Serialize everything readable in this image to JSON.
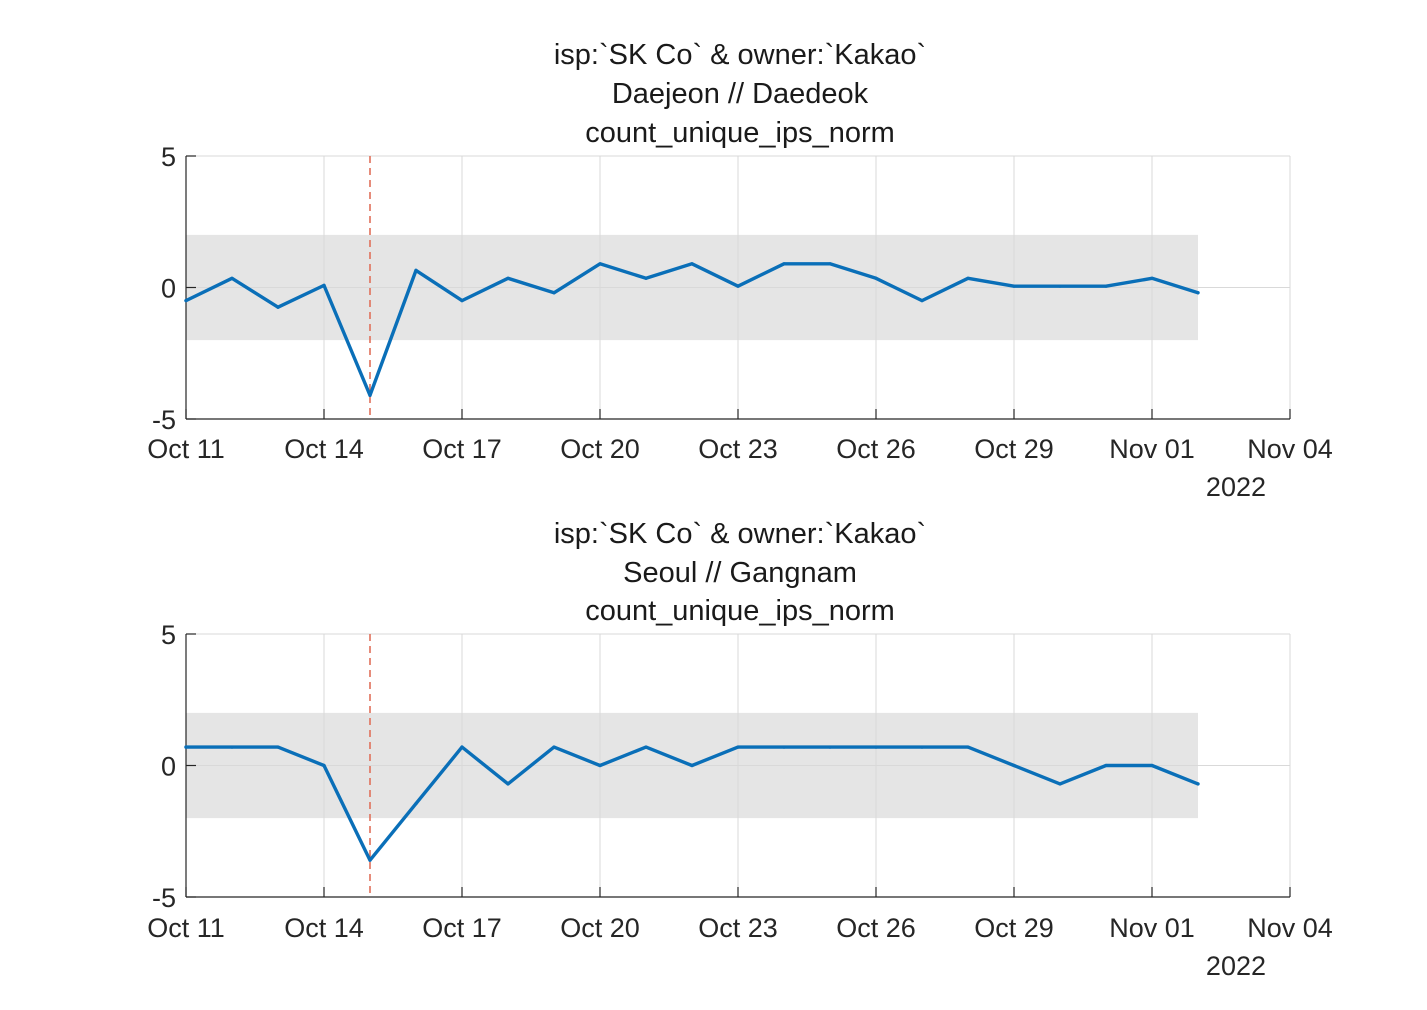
{
  "chart_data": [
    {
      "type": "line",
      "title": [
        "isp:`SK Co` & owner:`Kakao`",
        "Daejeon // Daedeok",
        "count_unique_ips_norm"
      ],
      "x_tick_labels": [
        "Oct 11",
        "Oct 14",
        "Oct 17",
        "Oct 20",
        "Oct 23",
        "Oct 26",
        "Oct 29",
        "Nov 01",
        "Nov 04"
      ],
      "x_ticks": [
        "2022-10-11",
        "2022-10-14",
        "2022-10-17",
        "2022-10-20",
        "2022-10-23",
        "2022-10-26",
        "2022-10-29",
        "2022-11-01",
        "2022-11-04"
      ],
      "x_secondary_label": "2022",
      "xlim": [
        "2022-10-11",
        "2022-11-04"
      ],
      "ylim": [
        -5,
        5
      ],
      "y_ticks": [
        -5,
        0,
        5
      ],
      "y_tick_labels": [
        "-5",
        "0",
        "5"
      ],
      "grid": true,
      "band": {
        "y_min": -2,
        "y_max": 2,
        "x_start": "2022-10-11",
        "x_end": "2022-11-02",
        "color": "#e5e5e5"
      },
      "vline": {
        "x": "2022-10-15",
        "color": "#e0705a",
        "style": "dashed"
      },
      "series": [
        {
          "color": "#0a6fb8",
          "x": [
            "2022-10-11",
            "2022-10-12",
            "2022-10-13",
            "2022-10-14",
            "2022-10-15",
            "2022-10-16",
            "2022-10-17",
            "2022-10-18",
            "2022-10-19",
            "2022-10-20",
            "2022-10-21",
            "2022-10-22",
            "2022-10-23",
            "2022-10-24",
            "2022-10-25",
            "2022-10-26",
            "2022-10-27",
            "2022-10-28",
            "2022-10-29",
            "2022-10-30",
            "2022-10-31",
            "2022-11-01",
            "2022-11-02"
          ],
          "values": [
            -0.5,
            0.35,
            -0.75,
            0.08,
            -4.1,
            0.65,
            -0.5,
            0.35,
            -0.2,
            0.9,
            0.35,
            0.9,
            0.05,
            0.9,
            0.9,
            0.35,
            -0.5,
            0.35,
            0.05,
            0.05,
            0.05,
            0.35,
            -0.2
          ]
        }
      ]
    },
    {
      "type": "line",
      "title": [
        "isp:`SK Co` & owner:`Kakao`",
        "Seoul // Gangnam",
        "count_unique_ips_norm"
      ],
      "x_tick_labels": [
        "Oct 11",
        "Oct 14",
        "Oct 17",
        "Oct 20",
        "Oct 23",
        "Oct 26",
        "Oct 29",
        "Nov 01",
        "Nov 04"
      ],
      "x_ticks": [
        "2022-10-11",
        "2022-10-14",
        "2022-10-17",
        "2022-10-20",
        "2022-10-23",
        "2022-10-26",
        "2022-10-29",
        "2022-11-01",
        "2022-11-04"
      ],
      "x_secondary_label": "2022",
      "xlim": [
        "2022-10-11",
        "2022-11-04"
      ],
      "ylim": [
        -5,
        5
      ],
      "y_ticks": [
        -5,
        0,
        5
      ],
      "y_tick_labels": [
        "-5",
        "0",
        "5"
      ],
      "grid": true,
      "band": {
        "y_min": -2,
        "y_max": 2,
        "x_start": "2022-10-11",
        "x_end": "2022-11-02",
        "color": "#e5e5e5"
      },
      "vline": {
        "x": "2022-10-15",
        "color": "#e0705a",
        "style": "dashed"
      },
      "series": [
        {
          "color": "#0a6fb8",
          "x": [
            "2022-10-11",
            "2022-10-12",
            "2022-10-13",
            "2022-10-14",
            "2022-10-15",
            "2022-10-16",
            "2022-10-17",
            "2022-10-18",
            "2022-10-19",
            "2022-10-20",
            "2022-10-21",
            "2022-10-22",
            "2022-10-23",
            "2022-10-24",
            "2022-10-25",
            "2022-10-26",
            "2022-10-27",
            "2022-10-28",
            "2022-10-29",
            "2022-10-30",
            "2022-10-31",
            "2022-11-01",
            "2022-11-02"
          ],
          "values": [
            0.7,
            0.7,
            0.7,
            0.0,
            -3.6,
            -1.45,
            0.7,
            -0.7,
            0.7,
            0.0,
            0.7,
            0.0,
            0.7,
            0.7,
            0.7,
            0.7,
            0.7,
            0.7,
            0.0,
            -0.7,
            0.0,
            0.0,
            -0.7
          ]
        }
      ]
    }
  ]
}
